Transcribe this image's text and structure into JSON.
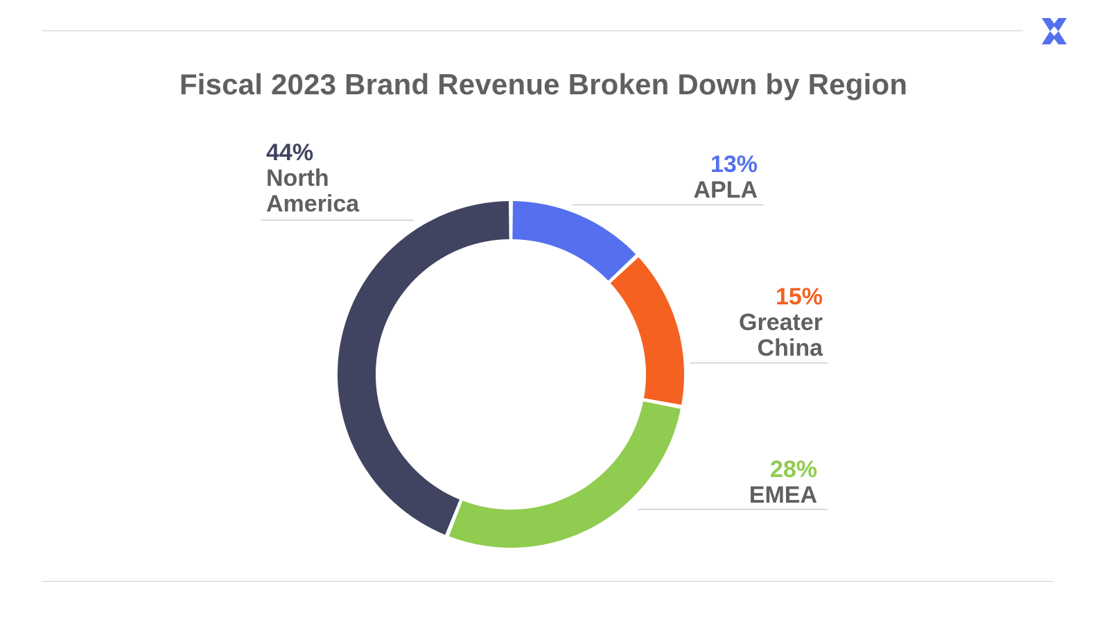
{
  "slide": {
    "logo_icon": "x-cross-brand-logo-icon",
    "brand_color": "#5470ee"
  },
  "chart_data": {
    "type": "pie",
    "variant": "donut",
    "title": "Fiscal 2023 Brand Revenue Broken Down by Region",
    "unit": "%",
    "slices": [
      {
        "name": "APLA",
        "name_lines": [
          "APLA"
        ],
        "value": 13,
        "label": "13%",
        "color": "#5470ee"
      },
      {
        "name": "Greater China",
        "name_lines": [
          "Greater",
          "China"
        ],
        "value": 15,
        "label": "15%",
        "color": "#f46120"
      },
      {
        "name": "EMEA",
        "name_lines": [
          "EMEA"
        ],
        "value": 28,
        "label": "28%",
        "color": "#90cc50"
      },
      {
        "name": "North America",
        "name_lines": [
          "North",
          "America"
        ],
        "value": 44,
        "label": "44%",
        "color": "#414460"
      }
    ],
    "start": "12 o'clock",
    "direction": "clockwise",
    "legend": "none"
  }
}
